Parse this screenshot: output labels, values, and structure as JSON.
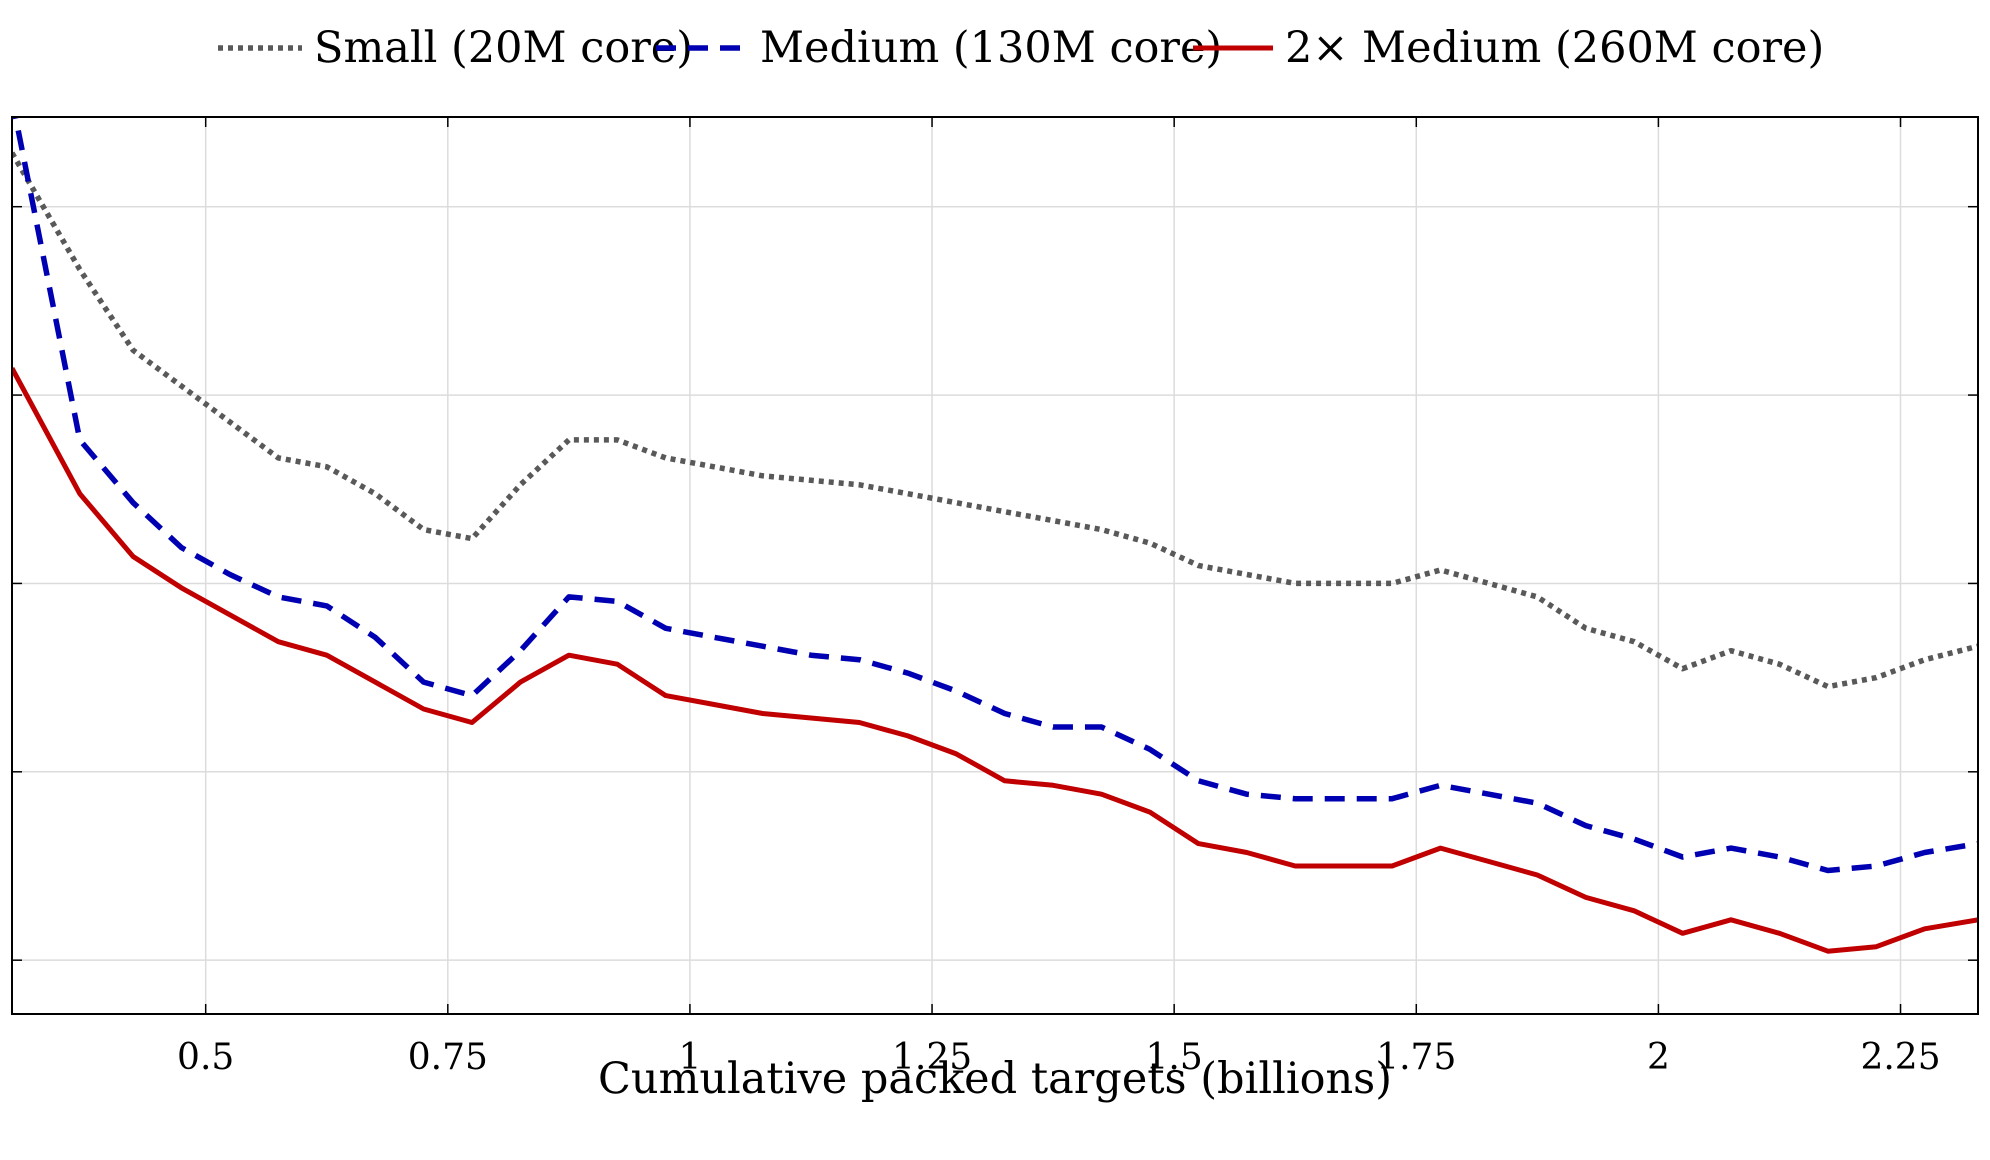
{
  "chart_data": {
    "type": "line",
    "title": "",
    "xlabel": "Cumulative packed targets (billions)",
    "ylabel": "",
    "xlim": [
      0.3,
      2.33
    ],
    "ylim": [
      0,
      1
    ],
    "grid": true,
    "legend_position": "top",
    "x_ticks": [
      "0.5",
      "0.75",
      "1",
      "1.25",
      "1.5",
      "1.75",
      "2",
      "2.25"
    ],
    "x_tick_values": [
      0.5,
      0.75,
      1,
      1.25,
      1.5,
      1.75,
      2,
      2.25
    ],
    "y_tick_values": [
      0.06,
      0.27,
      0.48,
      0.69,
      0.9
    ],
    "x": [
      0.3,
      0.37,
      0.425,
      0.475,
      0.525,
      0.575,
      0.625,
      0.675,
      0.725,
      0.775,
      0.825,
      0.875,
      0.925,
      0.975,
      1.025,
      1.075,
      1.125,
      1.175,
      1.225,
      1.275,
      1.325,
      1.375,
      1.425,
      1.475,
      1.525,
      1.575,
      1.625,
      1.675,
      1.725,
      1.775,
      1.825,
      1.875,
      1.925,
      1.975,
      2.025,
      2.075,
      2.125,
      2.175,
      2.225,
      2.275,
      2.33
    ],
    "series": [
      {
        "name": "Small (20M core)",
        "color": "#595959",
        "dash": "dotted",
        "values": [
          0.96,
          0.83,
          0.74,
          0.7,
          0.66,
          0.62,
          0.61,
          0.58,
          0.54,
          0.53,
          0.59,
          0.64,
          0.64,
          0.62,
          0.61,
          0.6,
          0.595,
          0.59,
          0.58,
          0.57,
          0.56,
          0.55,
          0.54,
          0.525,
          0.5,
          0.49,
          0.48,
          0.48,
          0.48,
          0.495,
          0.48,
          0.465,
          0.43,
          0.415,
          0.385,
          0.405,
          0.39,
          0.365,
          0.375,
          0.395,
          0.41
        ]
      },
      {
        "name": "Medium (130M core)",
        "color": "#0000b3",
        "dash": "dashed",
        "values": [
          1.02,
          0.64,
          0.57,
          0.52,
          0.49,
          0.465,
          0.455,
          0.42,
          0.37,
          0.355,
          0.405,
          0.465,
          0.46,
          0.43,
          0.42,
          0.41,
          0.4,
          0.395,
          0.38,
          0.36,
          0.335,
          0.32,
          0.32,
          0.295,
          0.26,
          0.245,
          0.24,
          0.24,
          0.24,
          0.255,
          0.245,
          0.235,
          0.21,
          0.195,
          0.175,
          0.185,
          0.175,
          0.16,
          0.165,
          0.18,
          0.19
        ]
      },
      {
        "name": "2× Medium (260M core)",
        "color": "#c00000",
        "dash": "solid",
        "values": [
          0.72,
          0.58,
          0.51,
          0.475,
          0.445,
          0.415,
          0.4,
          0.37,
          0.34,
          0.325,
          0.37,
          0.4,
          0.39,
          0.355,
          0.345,
          0.335,
          0.33,
          0.325,
          0.31,
          0.29,
          0.26,
          0.255,
          0.245,
          0.225,
          0.19,
          0.18,
          0.165,
          0.165,
          0.165,
          0.185,
          0.17,
          0.155,
          0.13,
          0.115,
          0.09,
          0.105,
          0.09,
          0.07,
          0.075,
          0.095,
          0.105
        ]
      }
    ]
  }
}
